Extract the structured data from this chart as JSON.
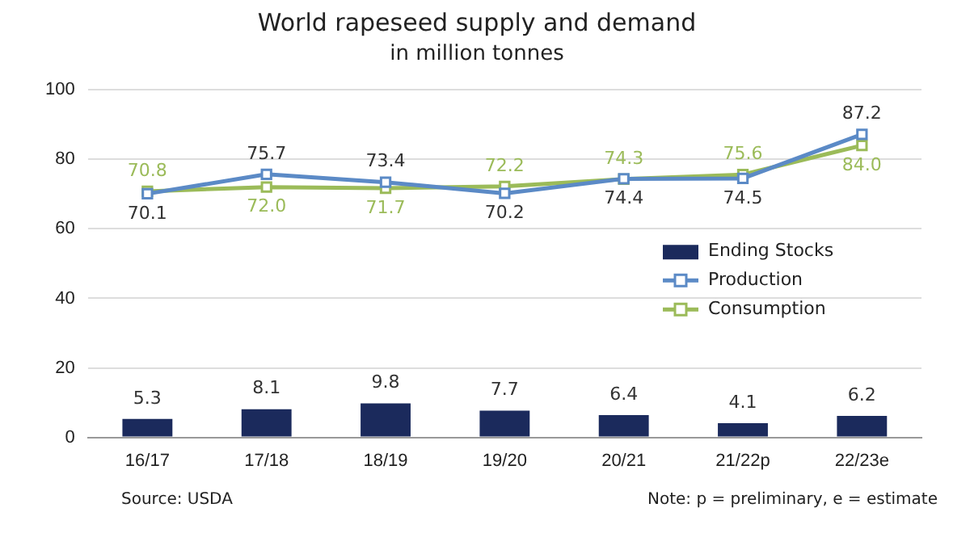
{
  "chart_data": {
    "type": "bar",
    "title": "World rapeseed supply and demand",
    "subtitle": "in million tonnes",
    "categories": [
      "16/17",
      "17/18",
      "18/19",
      "19/20",
      "20/21",
      "21/22p",
      "22/23e"
    ],
    "series": [
      {
        "name": "Ending Stocks",
        "color": "#1b2a5c",
        "values": [
          5.3,
          8.1,
          9.8,
          7.7,
          6.4,
          4.1,
          6.2
        ]
      },
      {
        "name": "Production",
        "type": "line",
        "color": "#5b8ac6",
        "values": [
          70.1,
          75.7,
          73.4,
          70.2,
          74.4,
          74.5,
          87.2
        ]
      },
      {
        "name": "Consumption",
        "type": "line",
        "color": "#9bbb59",
        "values": [
          70.8,
          72.0,
          71.7,
          72.2,
          74.3,
          75.6,
          84.0
        ],
        "value_labels": [
          "70.8",
          "72.0",
          "71.7",
          "72.2",
          "74.3",
          "75.6",
          "84.0"
        ]
      }
    ],
    "ylim": [
      0,
      100
    ],
    "yticks": [
      0,
      20,
      40,
      60,
      80,
      100
    ],
    "grid": "y",
    "legend": "right",
    "marker": "square",
    "line_style": "solid",
    "data_labels": true,
    "annotations": [
      "Source: USDA",
      "Note: p = preliminary, e = estimate"
    ]
  }
}
